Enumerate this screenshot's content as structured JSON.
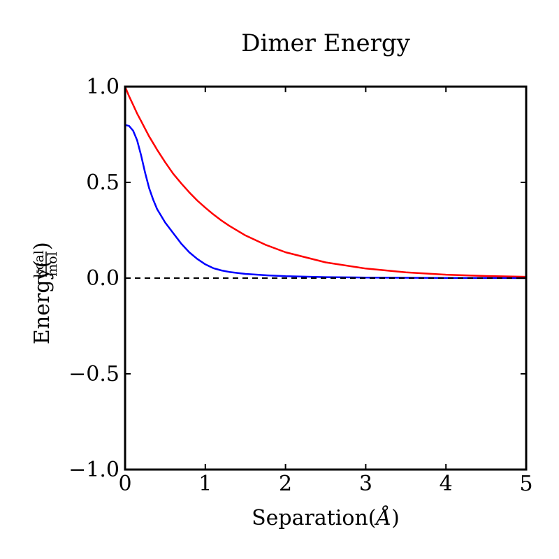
{
  "chart_data": {
    "type": "line",
    "title": "Dimer Energy",
    "xlabel_prefix": "Separation(",
    "xlabel_unit": "Å",
    "xlabel_suffix": ")",
    "ylabel_prefix": "Energy(",
    "ylabel_unit_num": "kcal",
    "ylabel_unit_den": "mol",
    "ylabel_suffix": ")",
    "xlim": [
      0,
      5
    ],
    "ylim": [
      -1.0,
      1.0
    ],
    "x_ticks": [
      0,
      1,
      2,
      3,
      4,
      5
    ],
    "x_tick_labels": [
      "0",
      "1",
      "2",
      "3",
      "4",
      "5"
    ],
    "y_ticks": [
      1.0,
      0.5,
      0.0,
      -0.5,
      -1.0
    ],
    "y_tick_labels": [
      "1.0",
      "0.5",
      "0.0",
      "−0.5",
      "−1.0"
    ],
    "grid": false,
    "legend": "none",
    "x": [
      0,
      0.05,
      0.1,
      0.15,
      0.2,
      0.25,
      0.3,
      0.35,
      0.4,
      0.5,
      0.6,
      0.7,
      0.8,
      0.9,
      1.0,
      1.1,
      1.2,
      1.3,
      1.5,
      1.75,
      2.0,
      2.5,
      3.0,
      3.5,
      4.0,
      4.5,
      5.0
    ],
    "series": [
      {
        "color": "#ff0000",
        "style": "solid",
        "values": [
          1.0,
          0.95,
          0.905,
          0.86,
          0.82,
          0.78,
          0.74,
          0.705,
          0.67,
          0.605,
          0.545,
          0.495,
          0.448,
          0.405,
          0.368,
          0.333,
          0.301,
          0.273,
          0.223,
          0.174,
          0.135,
          0.082,
          0.05,
          0.03,
          0.018,
          0.011,
          0.007
        ]
      },
      {
        "color": "#0000ff",
        "style": "solid",
        "values": [
          0.8,
          0.795,
          0.77,
          0.72,
          0.64,
          0.55,
          0.47,
          0.41,
          0.36,
          0.29,
          0.235,
          0.18,
          0.135,
          0.1,
          0.072,
          0.052,
          0.04,
          0.032,
          0.022,
          0.015,
          0.01,
          0.005,
          0.003,
          0.002,
          0.001,
          0.001,
          0.0
        ]
      },
      {
        "color": "#000000",
        "style": "dashed",
        "values": [
          0.0,
          0.0,
          0.0,
          0.0,
          0.0,
          0.0,
          0.0,
          0.0,
          0.0,
          0.0,
          0.0,
          0.0,
          0.0,
          0.0,
          0.0,
          0.0,
          0.0,
          0.0,
          0.0,
          0.0,
          0.0,
          0.0,
          0.0,
          0.0,
          0.0,
          0.0,
          0.0
        ]
      }
    ]
  }
}
